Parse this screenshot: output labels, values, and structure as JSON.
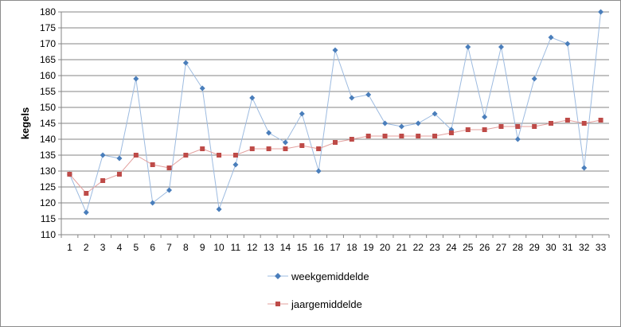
{
  "chart_data": {
    "type": "line",
    "title": "",
    "xlabel": "",
    "ylabel": "kegels",
    "ylim": [
      110,
      180
    ],
    "ytick_step": 5,
    "grid": true,
    "legend_position": "bottom-center",
    "x": [
      1,
      2,
      3,
      4,
      5,
      6,
      7,
      8,
      9,
      10,
      11,
      12,
      13,
      14,
      15,
      16,
      17,
      18,
      19,
      20,
      21,
      22,
      23,
      24,
      25,
      26,
      27,
      28,
      29,
      30,
      31,
      32,
      33
    ],
    "series": [
      {
        "name": "weekgemiddelde",
        "marker": "diamond",
        "color": "#4a7ebb",
        "line_color": "#9dbbe0",
        "values": [
          129,
          117,
          135,
          134,
          159,
          120,
          124,
          164,
          156,
          118,
          132,
          153,
          142,
          139,
          148,
          130,
          168,
          153,
          154,
          145,
          144,
          145,
          148,
          143,
          169,
          147,
          169,
          140,
          159,
          172,
          170,
          131,
          180
        ]
      },
      {
        "name": "jaargemiddelde",
        "marker": "square",
        "color": "#be4b48",
        "line_color": "#e3a09e",
        "values": [
          129,
          123,
          127,
          129,
          135,
          132,
          131,
          135,
          137,
          135,
          135,
          137,
          137,
          137,
          138,
          137,
          139,
          140,
          141,
          141,
          141,
          141,
          141,
          142,
          143,
          143,
          144,
          144,
          144,
          145,
          146,
          145,
          146
        ]
      }
    ]
  }
}
